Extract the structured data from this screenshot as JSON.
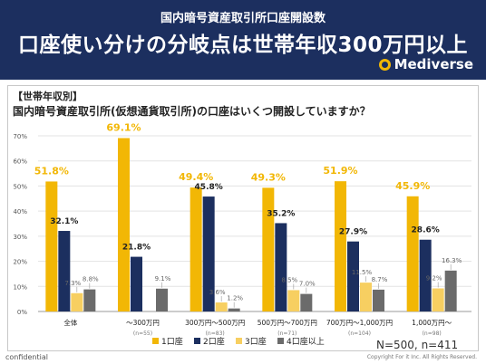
{
  "header": {
    "supertitle": "国内暗号資産取引所口座開設数",
    "title": "口座使い分けの分岐点は世帯年収300万円以上",
    "brand": "Mediverse",
    "brand_icon": "brand-logo-icon"
  },
  "section_tag": "【世帯年収別】",
  "question": "国内暗号資産取引所(仮想通貨取引所)の口座はいくつ開設していますか？",
  "sample_summary": "N=500, n=411",
  "footer": {
    "left": "confidential",
    "right": "Copyright For it Inc. All Rights Reserved."
  },
  "colors": {
    "header_bg": "#1c2f5f",
    "series": [
      "#f2b705",
      "#1c2f5f",
      "#f7cf61",
      "#6b6b6b"
    ],
    "top_label": "#f2b705"
  },
  "chart_data": {
    "type": "bar",
    "categories": [
      "全体",
      "～300万円",
      "300万円～500万円",
      "500万円～700万円",
      "700万円～1,000万円",
      "1,000万円～"
    ],
    "category_notes": [
      "",
      "(n=55)",
      "(n=83)",
      "(n=71)",
      "(n=104)",
      "(n=98)"
    ],
    "series": [
      {
        "name": "1口座",
        "values": [
          51.8,
          69.1,
          49.4,
          49.3,
          51.9,
          45.9
        ]
      },
      {
        "name": "2口座",
        "values": [
          32.1,
          21.8,
          45.8,
          35.2,
          27.9,
          28.6
        ]
      },
      {
        "name": "3口座",
        "values": [
          7.3,
          0,
          3.6,
          8.5,
          11.5,
          9.2
        ]
      },
      {
        "name": "4口座以上",
        "values": [
          8.8,
          9.1,
          1.2,
          7.0,
          8.7,
          16.3
        ]
      }
    ],
    "value_labels": [
      [
        "51.8%",
        "69.1%",
        "49.4%",
        "49.3%",
        "51.9%",
        "45.9%"
      ],
      [
        "32.1%",
        "21.8%",
        "45.8%",
        "35.2%",
        "27.9%",
        "28.6%"
      ],
      [
        "7.3%",
        "",
        "3.6%",
        "8.5%",
        "11.5%",
        "9.2%"
      ],
      [
        "8.8%",
        "9.1%",
        "1.2%",
        "7.0%",
        "8.7%",
        "16.3%"
      ]
    ],
    "ylim": [
      0,
      70
    ],
    "yticks": [
      "0%",
      "10%",
      "20%",
      "30%",
      "40%",
      "50%",
      "60%",
      "70%"
    ],
    "grid": true,
    "legend_position": "bottom-center"
  }
}
